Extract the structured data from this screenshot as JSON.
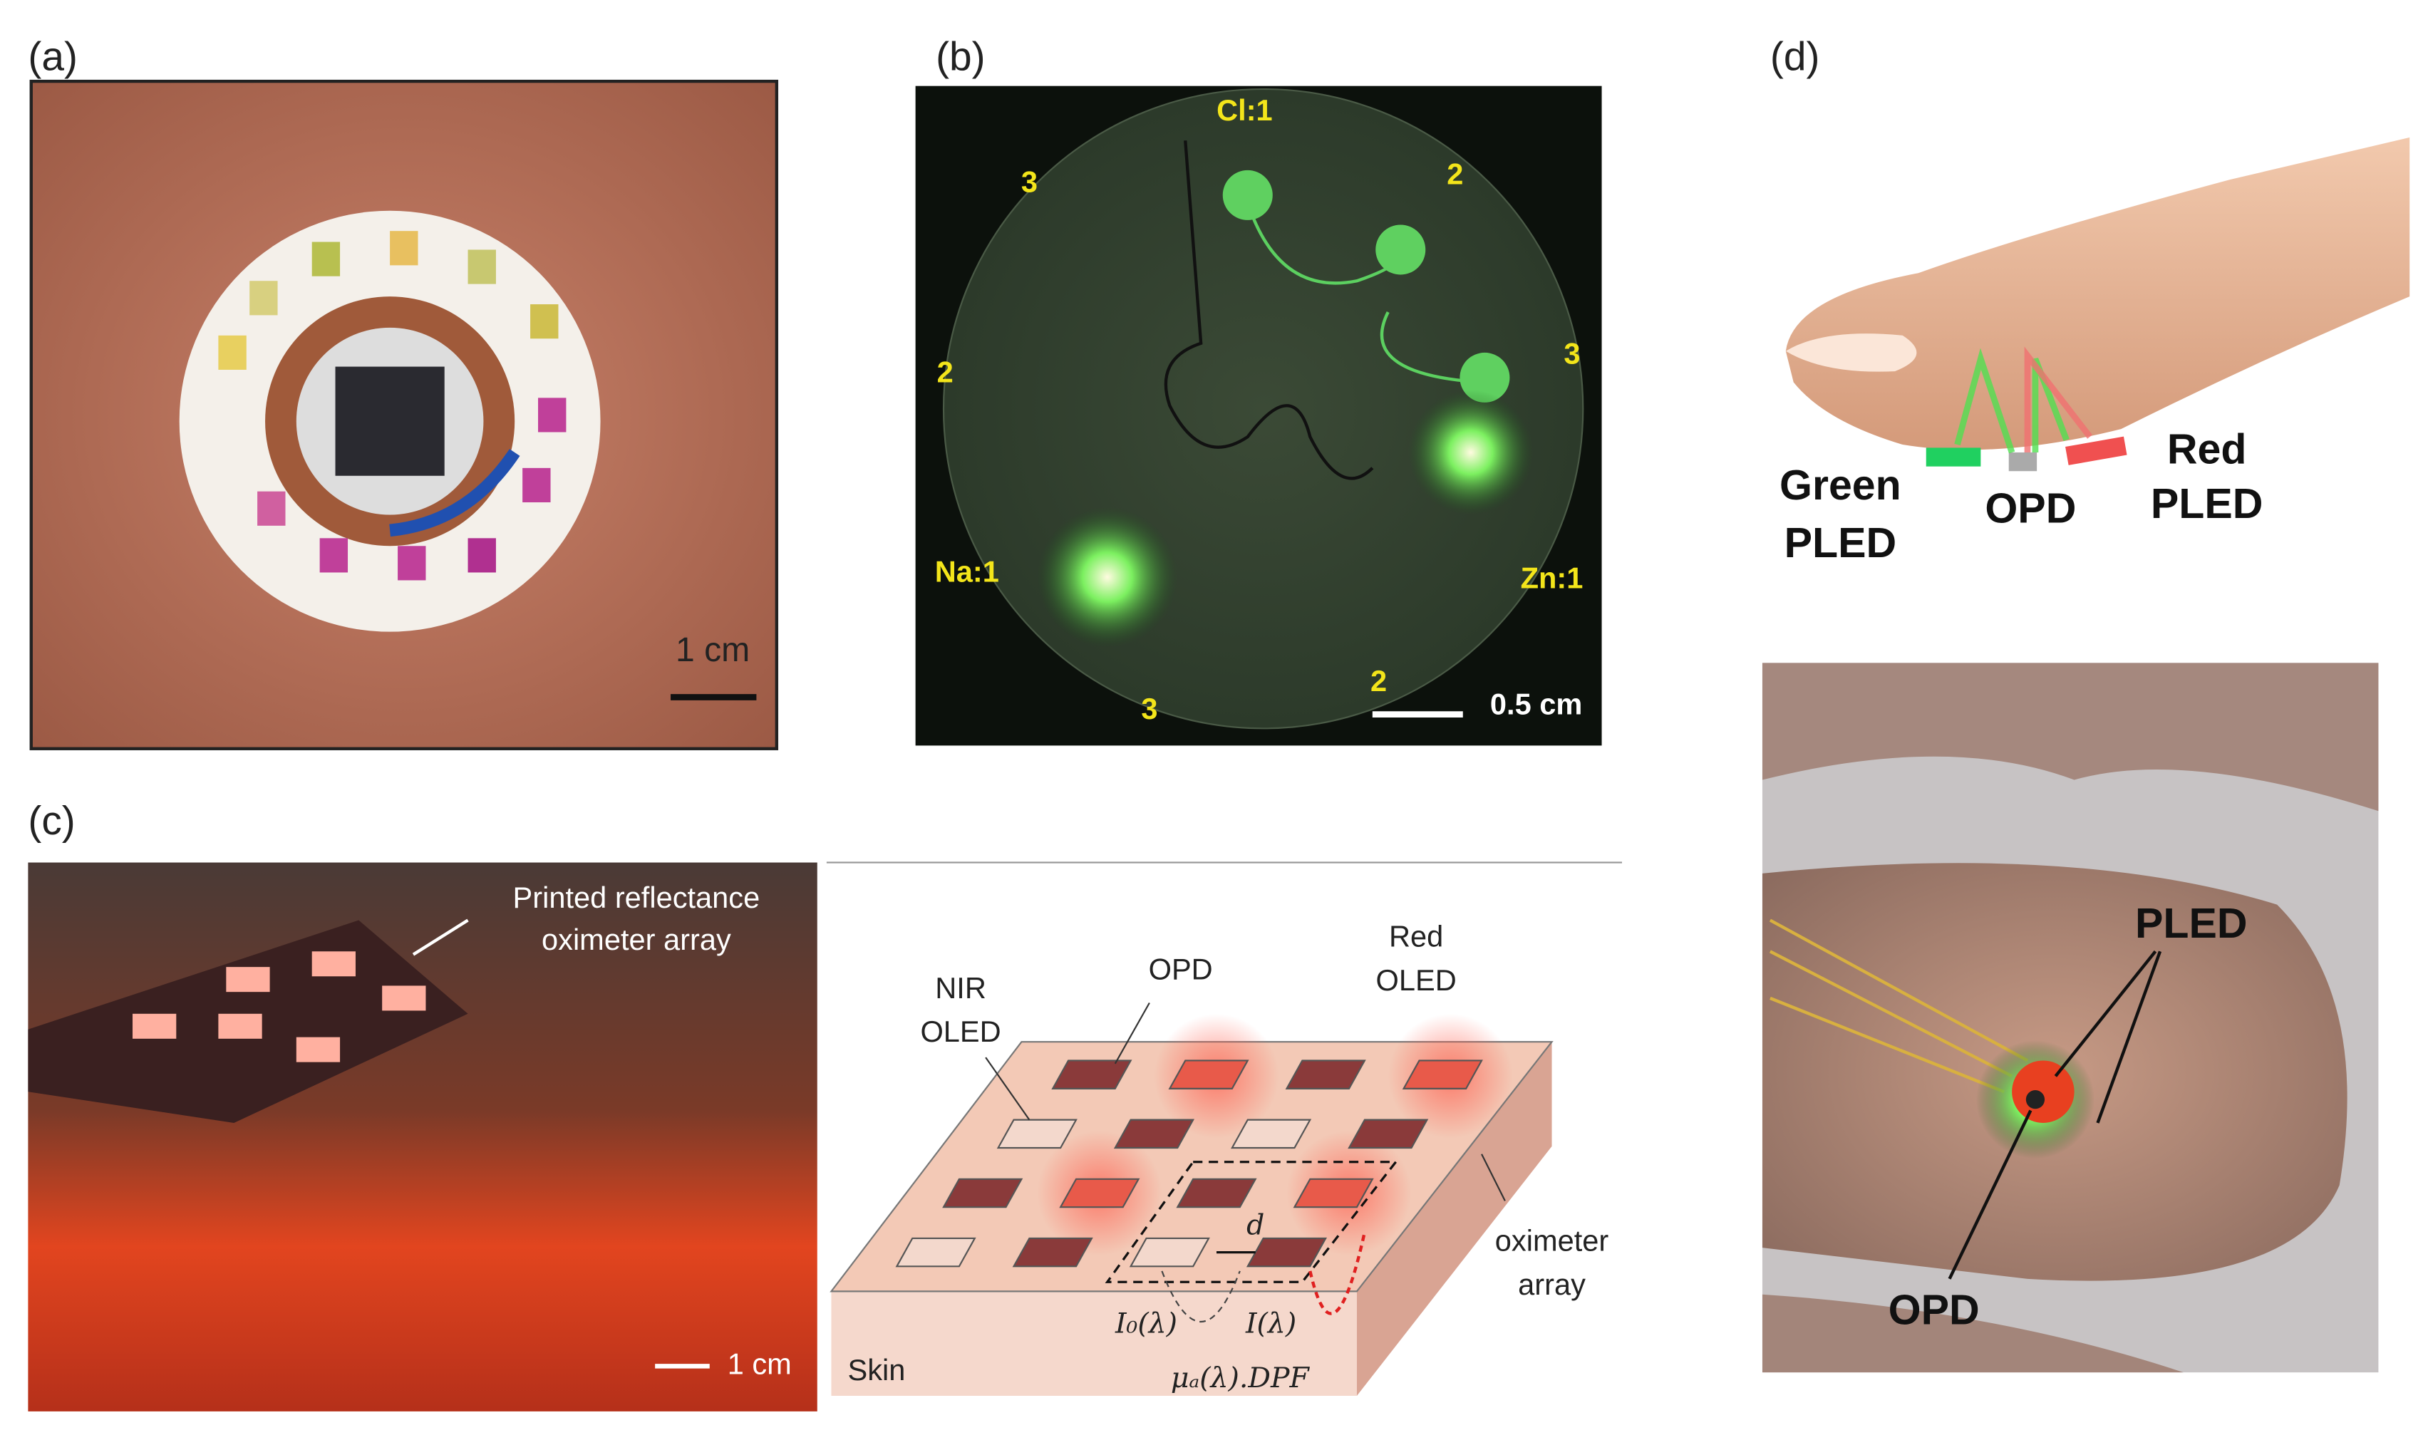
{
  "panels": {
    "a": {
      "label": "(a)",
      "scale_bar": "1 cm"
    },
    "b": {
      "label": "(b)",
      "labels": [
        "Cl:1",
        "3",
        "2",
        "2",
        "3",
        "Na:1",
        "Zn:1",
        "2",
        "3"
      ],
      "scale_bar": "0.5 cm"
    },
    "c": {
      "label": "(c)",
      "photo_caption": [
        "Printed reflectance",
        "oximeter array"
      ],
      "scale_bar": "1 cm",
      "diagram": {
        "nir_oled": [
          "NIR",
          "OLED"
        ],
        "opd": "OPD",
        "red_oled": [
          "Red",
          "OLED"
        ],
        "oximeter_array": [
          "oximeter",
          "array"
        ],
        "skin": "Skin",
        "distance": "d",
        "incident": "I₀(λ)",
        "detected": "I(λ)",
        "absorption": "μₐ(λ).DPF"
      }
    },
    "d": {
      "label": "(d)",
      "green_pled": [
        "Green",
        "PLED"
      ],
      "opd": "OPD",
      "red_pled": [
        "Red",
        "PLED"
      ],
      "photo_pled": "PLED",
      "photo_opd": "OPD"
    }
  }
}
